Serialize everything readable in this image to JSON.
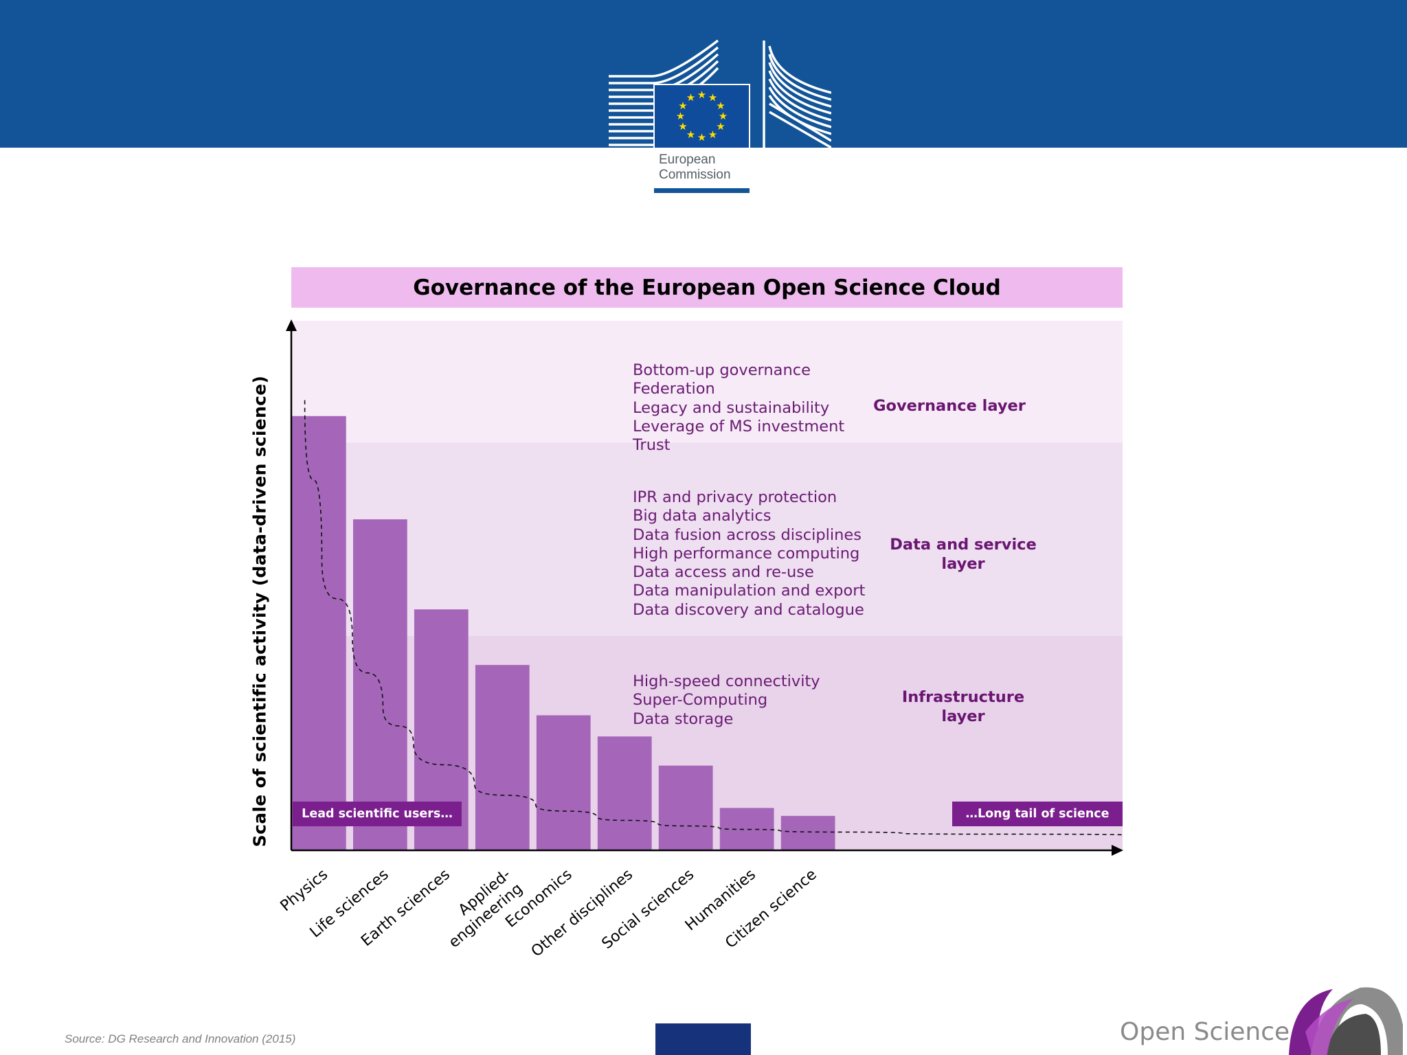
{
  "header": {
    "logo_name": "eu-commission-logo",
    "logo_text": "European\nCommission",
    "brand_color": "#125497"
  },
  "chart_data": {
    "type": "bar",
    "title": "Governance of the European Open Science Cloud",
    "xlabel": "",
    "ylabel": "Scale of scientific activity (data-driven science)",
    "categories": [
      "Physics",
      "Life sciences",
      "Earth sciences",
      "Applied-\nengineering",
      "Economics",
      "Other disciplines",
      "Social sciences",
      "Humanities",
      "Citizen science"
    ],
    "values": [
      82,
      62.5,
      45.5,
      35,
      25.5,
      21.5,
      16,
      8,
      6.5
    ],
    "ylim": [
      0,
      100
    ],
    "x_extent_categories": 13.6,
    "bar_color": "#a566b9",
    "grid": false,
    "trend_line": {
      "style": "dashed",
      "description": "decay curve",
      "points": [
        [
          0.22,
          85
        ],
        [
          0.5,
          55
        ],
        [
          1,
          40
        ],
        [
          1.5,
          27
        ],
        [
          2,
          20
        ],
        [
          3,
          12.3
        ],
        [
          4,
          8.5
        ],
        [
          5,
          6.3
        ],
        [
          6,
          5
        ],
        [
          7,
          4.2
        ],
        [
          8,
          3.7
        ],
        [
          10,
          3.2
        ],
        [
          13.6,
          2.9
        ]
      ]
    },
    "layers": [
      {
        "name": "Governance layer",
        "y_range": [
          77,
          100
        ],
        "color": "#f6ebf7",
        "items": [
          "Bottom-up governance",
          "Federation",
          "Legacy and sustainability",
          "Leverage of MS investment",
          "Trust"
        ]
      },
      {
        "name": "Data and service\nlayer",
        "y_range": [
          40.5,
          77
        ],
        "color": "#eedff1",
        "items": [
          "IPR and privacy protection",
          "Big data analytics",
          "Data fusion across disciplines",
          "High performance computing",
          "Data access and re-use",
          "Data manipulation and export",
          "Data discovery and catalogue"
        ]
      },
      {
        "name": "Infrastructure\nlayer",
        "y_range": [
          0,
          40.5
        ],
        "color": "#e8d3eb",
        "items": [
          "High-speed connectivity",
          "Super-Computing",
          "Data storage"
        ]
      }
    ],
    "annotations": {
      "left_tag": "Lead scientific users…",
      "right_tag": "…Long tail of science",
      "tag_color": "#7b1f8e"
    }
  },
  "footer": {
    "source": "Source: DG Research and Innovation (2015)",
    "brand": "Open Science",
    "logo_name": "open-science-logo"
  }
}
